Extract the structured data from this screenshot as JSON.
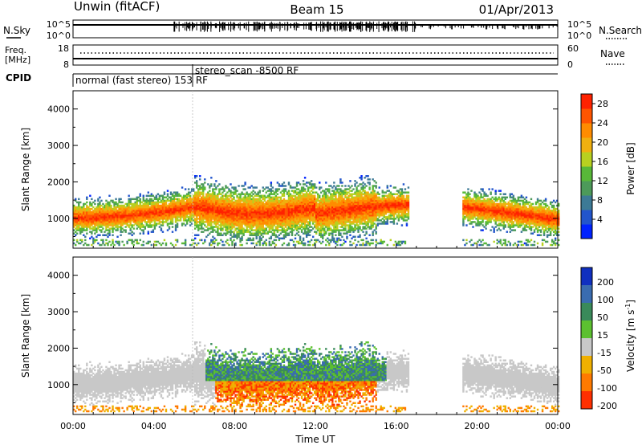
{
  "header": {
    "station": "Unwin (fitACF)",
    "beam": "Beam 15",
    "date": "01/Apr/2013"
  },
  "noise_panel": {
    "left_label": "N.Sky",
    "right_label": "N.Search",
    "left_ticks": [
      "10^5",
      "10^0"
    ],
    "right_ticks": [
      "10^5",
      "10^0"
    ]
  },
  "freq_panel": {
    "left_label_1": "Freq.",
    "left_label_2": "[MHz]",
    "right_label": "Nave",
    "left_ticks": [
      "18",
      "8"
    ],
    "right_ticks": [
      "60",
      "0"
    ]
  },
  "cpid": {
    "label": "CPID",
    "mode_1": "normal (fast stereo) 153 RF",
    "mode_2": "stereo_scan -8500 RF"
  },
  "chart_data": [
    {
      "type": "heatmap",
      "title": "Power",
      "ylabel": "Slant Range [km]",
      "ylim": [
        180,
        4500
      ],
      "yticks": [
        1000,
        2000,
        3000,
        4000
      ],
      "xlim": [
        0,
        24
      ],
      "colorbar": {
        "label": "Power [dB]",
        "ticks": [
          4,
          8,
          12,
          16,
          20,
          24,
          28
        ],
        "range": [
          0,
          30
        ],
        "colors": [
          "#0022ff",
          "#2255cc",
          "#3d7a96",
          "#4d9a5a",
          "#58b838",
          "#b8d020",
          "#f0b010",
          "#ff8c00",
          "#ff5500",
          "#ff2200"
        ]
      }
    },
    {
      "type": "heatmap",
      "title": "Velocity",
      "ylabel": "Slant Range [km]",
      "ylim": [
        180,
        4500
      ],
      "yticks": [
        1000,
        2000,
        3000,
        4000
      ],
      "xlim": [
        0,
        24
      ],
      "xlabel": "Time UT",
      "xticks": [
        "00:00",
        "04:00",
        "08:00",
        "12:00",
        "16:00",
        "20:00",
        "00:00"
      ],
      "colorbar": {
        "label_main": "Velocity [m s",
        "label_sup": "-1",
        "label_end": "]",
        "ticks": [
          "200",
          "100",
          "50",
          "15",
          "-15",
          "-50",
          "-100",
          "-200"
        ],
        "colors": [
          "#1030c0",
          "#3a6cb0",
          "#3a8a5a",
          "#5cc030",
          "#c8c8c8",
          "#f0b000",
          "#ff7a00",
          "#ff3000"
        ]
      }
    }
  ]
}
